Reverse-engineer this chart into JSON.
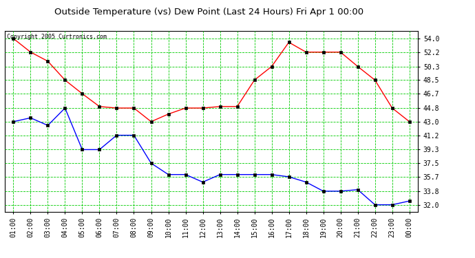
{
  "title": "Outside Temperature (vs) Dew Point (Last 24 Hours) Fri Apr 1 00:00",
  "copyright": "Copyright 2005 Curtronics.com",
  "x_labels": [
    "01:00",
    "02:00",
    "03:00",
    "04:00",
    "05:00",
    "06:00",
    "07:00",
    "08:00",
    "09:00",
    "10:00",
    "11:00",
    "12:00",
    "13:00",
    "14:00",
    "15:00",
    "16:00",
    "17:00",
    "18:00",
    "19:00",
    "20:00",
    "21:00",
    "22:00",
    "23:00",
    "00:00"
  ],
  "temp_red": [
    54.0,
    52.2,
    51.0,
    48.5,
    46.7,
    45.0,
    44.8,
    44.8,
    43.0,
    44.0,
    44.8,
    44.8,
    45.0,
    45.0,
    48.5,
    50.3,
    53.5,
    52.2,
    52.2,
    52.2,
    50.3,
    48.5,
    44.8,
    43.0
  ],
  "dew_blue": [
    43.0,
    43.5,
    42.5,
    44.8,
    39.3,
    39.3,
    41.2,
    41.2,
    37.5,
    36.0,
    36.0,
    35.0,
    36.0,
    36.0,
    36.0,
    36.0,
    35.7,
    35.0,
    33.8,
    33.8,
    34.0,
    32.0,
    32.0,
    32.5
  ],
  "y_ticks": [
    32.0,
    33.8,
    35.7,
    37.5,
    39.3,
    41.2,
    43.0,
    44.8,
    46.7,
    48.5,
    50.3,
    52.2,
    54.0
  ],
  "ylim": [
    31.1,
    55.0
  ],
  "bg_color": "#ffffff",
  "plot_bg": "#ffffff",
  "grid_color": "#00cc00",
  "grid_style": "--",
  "red_color": "#ff0000",
  "blue_color": "#0000ff",
  "marker_color": "#000000",
  "title_fontsize": 9.5,
  "copyright_fontsize": 6.0,
  "tick_fontsize": 7.0
}
